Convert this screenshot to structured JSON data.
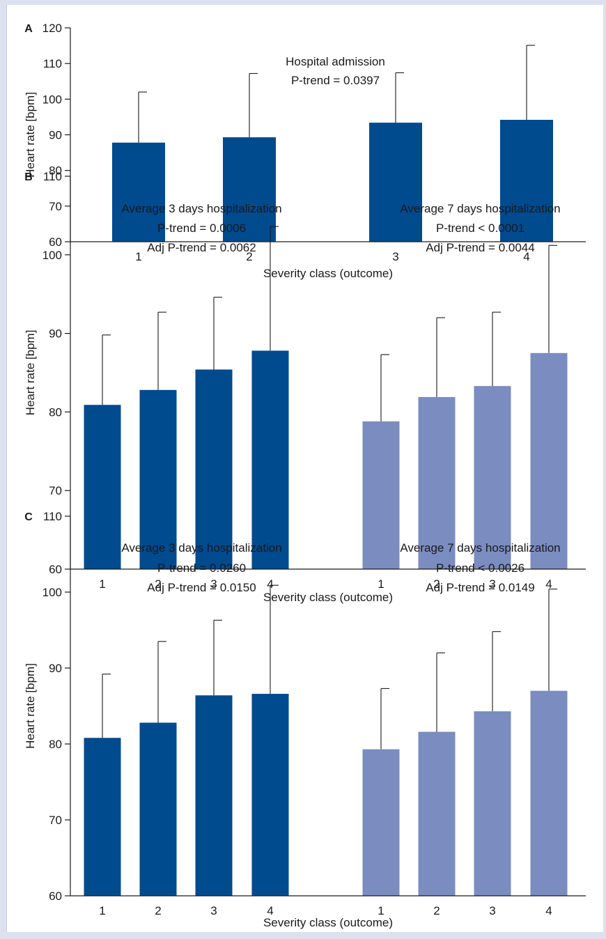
{
  "colors": {
    "dark_bar": "#004a8e",
    "light_bar": "#7b8cc0",
    "axis": "#1a1a1a",
    "background": "#dde1ef"
  },
  "chart_data": [
    {
      "panel": "A",
      "type": "bar",
      "ylabel": "Heart rate [bpm]",
      "xlabel": "Severity class (outcome)",
      "ylim": [
        60,
        120
      ],
      "yticks": [
        60,
        70,
        80,
        90,
        100,
        110,
        120
      ],
      "grid": false,
      "groups": [
        {
          "annotation": [
            "Hospital admission",
            "P-trend = 0.0397"
          ],
          "color": "#004a8e",
          "categories": [
            "1",
            "2",
            "3",
            "4"
          ],
          "values": [
            87.8,
            89.3,
            93.4,
            94.2
          ],
          "errors": [
            14.2,
            17.9,
            14.0,
            20.9
          ]
        }
      ]
    },
    {
      "panel": "B",
      "type": "bar",
      "ylabel": "Heart rate [bpm]",
      "xlabel": "Severity class (outcome)",
      "ylim": [
        60,
        110
      ],
      "yticks": [
        60,
        70,
        80,
        90,
        100,
        110
      ],
      "grid": false,
      "groups": [
        {
          "annotation": [
            "Average 3 days hospitalization",
            "P-trend = 0.0006",
            "Adj P-trend = 0.0062"
          ],
          "color": "#004a8e",
          "categories": [
            "1",
            "2",
            "3",
            "4"
          ],
          "values": [
            80.9,
            82.8,
            85.4,
            87.8
          ],
          "errors": [
            8.9,
            9.9,
            9.2,
            15.8
          ]
        },
        {
          "annotation": [
            "Average 7 days hospitalization",
            "P-trend < 0.0001",
            "Adj P-trend = 0.0044"
          ],
          "color": "#7b8cc0",
          "categories": [
            "1",
            "2",
            "3",
            "4"
          ],
          "values": [
            78.8,
            81.9,
            83.3,
            87.5
          ],
          "errors": [
            8.5,
            10.1,
            9.4,
            13.7
          ]
        }
      ]
    },
    {
      "panel": "C",
      "type": "bar",
      "ylabel": "Heart rate [bpm]",
      "xlabel": "Severity class (outcome)",
      "ylim": [
        60,
        110
      ],
      "yticks": [
        60,
        70,
        80,
        90,
        100,
        110
      ],
      "grid": false,
      "groups": [
        {
          "annotation": [
            "Average 3 days hospitalization",
            "P-trend = 0.0260",
            "Adj P-trend = 0.0150"
          ],
          "color": "#004a8e",
          "categories": [
            "1",
            "2",
            "3",
            "4"
          ],
          "values": [
            80.8,
            82.8,
            86.4,
            86.6
          ],
          "errors": [
            8.4,
            10.7,
            9.9,
            14.3
          ]
        },
        {
          "annotation": [
            "Average 7 days hospitalization",
            "P-trend < 0.0026",
            "Adj P-trend = 0.0149"
          ],
          "color": "#7b8cc0",
          "categories": [
            "1",
            "2",
            "3",
            "4"
          ],
          "values": [
            79.3,
            81.6,
            84.3,
            87.0
          ],
          "errors": [
            8.0,
            10.4,
            10.5,
            13.4
          ]
        }
      ]
    }
  ]
}
